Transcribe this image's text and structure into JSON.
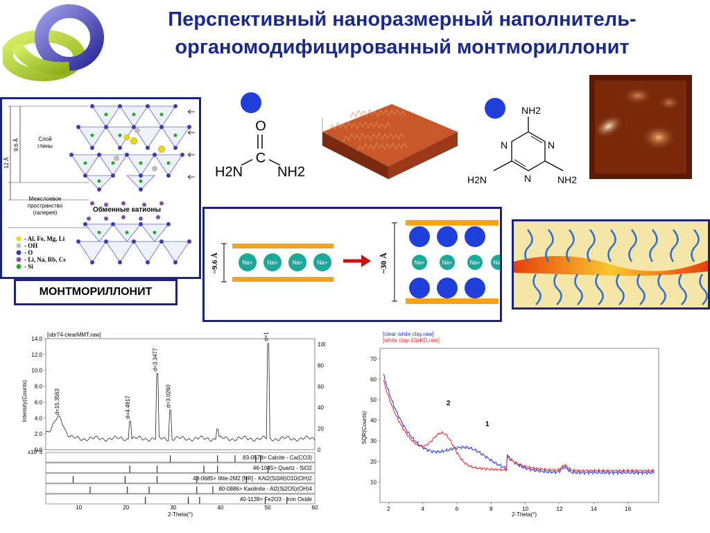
{
  "title": {
    "line1": "Перспективный наноразмерный наполнитель-",
    "line2": "органомодифицированный монтмориллонит"
  },
  "clay_structure": {
    "dim_12": "12 Å",
    "dim_96": "9.6 Å",
    "layer_label_1": "Слой",
    "layer_label_2": "глины",
    "gallery_label_1": "Межслоевое",
    "gallery_label_2": "пространство",
    "gallery_label_3": "(галерея)",
    "exchange_cations": "Обменные катионы",
    "legend": [
      {
        "label": "- Al, Fe, Mg, Li",
        "color": "#f2d400"
      },
      {
        "label": "- OH",
        "color": "#bdbdbd"
      },
      {
        "label": "- O",
        "color": "#3b3bb5"
      },
      {
        "label": "- Li, Na, Rb, Cs",
        "color": "#8a4da6"
      },
      {
        "label": "- Si",
        "color": "#22aa22"
      }
    ],
    "name": "МОНТМОРИЛЛОНИТ"
  },
  "urea": {
    "O": "O",
    "C": "C",
    "left": "H2N",
    "right": "NH2"
  },
  "melamine": {
    "top": "NH2",
    "N_left": "N",
    "N_right": "N",
    "N_bottom": "N",
    "left": "H2N",
    "right": "NH2"
  },
  "interlayer": {
    "small_gap": "~9.6 Å",
    "large_gap": "~30 Å",
    "cation": "Na+"
  },
  "xrd_left": {
    "file_label": "[obr74-clearMMT.raw]",
    "xlabel": "2-Theta(°)",
    "ylabel": "Intensity(Counts)",
    "scale_note": "x10^3",
    "x_ticks": [
      "10",
      "20",
      "30",
      "40",
      "50",
      "60"
    ],
    "y_ticks": [
      "0.0",
      "2.0",
      "4.0",
      "6.0",
      "8.0",
      "10.0",
      "12.0",
      "14.0"
    ],
    "y2_ticks": [
      "0",
      "20",
      "40",
      "60",
      "80",
      "100"
    ],
    "peaks": [
      "d=15.3563",
      "d=3.3477",
      "d=3.0260",
      "d=1.8184",
      "d=4.4917"
    ],
    "phases": [
      "83-0578> Calcite - Ca(CO3)",
      "46-1045> Quartz - SiO2",
      "43-0685> Illite-2M2 [NR] - KAl2(Si3Al)O10(OH)2",
      "80-0886> Kaolinite - Al2(Si2O5)(OH)4",
      "40-1139> Fe2O3 - Iron Oxide"
    ]
  },
  "xrd_right": {
    "legend": [
      "[clear white clay.raw]",
      "[white clay-10pKD.raw]"
    ],
    "legend_colors": [
      "#2233ee",
      "#ee2222"
    ],
    "xlabel": "2-Theta(°)",
    "ylabel": "SQR(Counts)",
    "x_ticks": [
      "2",
      "4",
      "6",
      "8",
      "10",
      "12",
      "14",
      "16"
    ],
    "y_ticks": [
      "10",
      "20",
      "30",
      "40",
      "50",
      "60",
      "70"
    ],
    "curve_labels": [
      "1",
      "2"
    ]
  },
  "colors": {
    "title": "#1a2a8c",
    "frame": "#1a237e",
    "sheet": "#f7a21b",
    "sphere": "#1e40d8",
    "cation": "#1aa89a"
  }
}
